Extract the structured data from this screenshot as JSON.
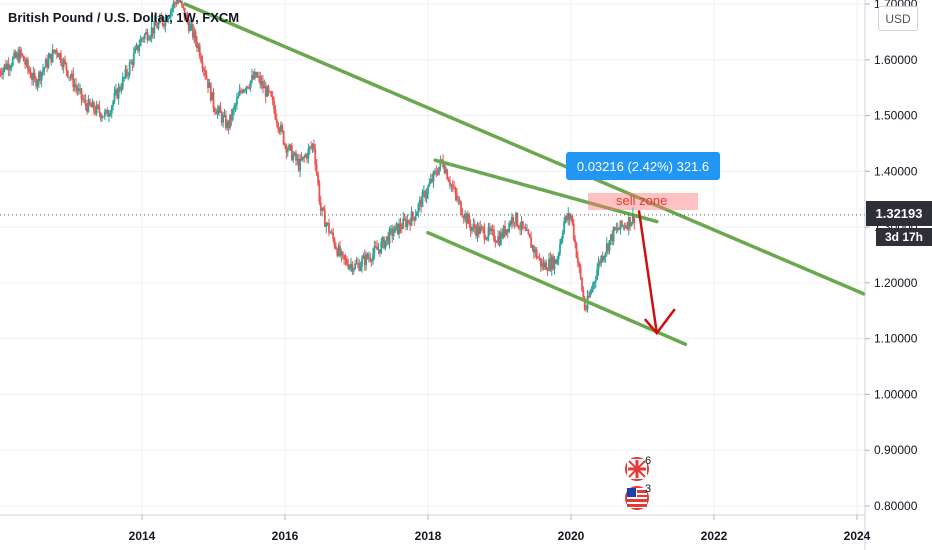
{
  "title": "British Pound / U.S. Dollar, 1W, FXCM",
  "currency": "USD",
  "current_price": "1.32193",
  "countdown": "3d 17h",
  "measure_label": "0.03216 (2.42%) 321.6",
  "sell_zone_label": "sell zone",
  "events": [
    {
      "name": "uk-flag-icon",
      "count": "6"
    },
    {
      "name": "us-flag-icon",
      "count": "3"
    }
  ],
  "colors": {
    "up": "#26a69a",
    "down": "#ef5350",
    "trendline": "#6aa84f",
    "arrow": "#cc1111",
    "measure": "#2196f3",
    "axis_text": "#131722"
  },
  "chart_data": {
    "type": "candlestick",
    "title": "British Pound / U.S. Dollar, 1W, FXCM",
    "xlabel": "",
    "ylabel": "",
    "x_ticks": [
      "2014",
      "2016",
      "2018",
      "2020",
      "2022",
      "2024"
    ],
    "y_ticks": [
      "1.70000",
      "1.60000",
      "1.50000",
      "1.40000",
      "1.30000",
      "1.20000",
      "1.10000",
      "1.00000",
      "0.90000",
      "0.80000"
    ],
    "ylim": [
      0.79,
      1.7
    ],
    "xlim": [
      2012.0,
      2024.1
    ],
    "grid": true,
    "series": [
      {
        "values": [
          [
            2012.0,
            1.58
          ],
          [
            2012.3,
            1.61
          ],
          [
            2012.5,
            1.56
          ],
          [
            2012.8,
            1.62
          ],
          [
            2013.2,
            1.52
          ],
          [
            2013.5,
            1.5
          ],
          [
            2013.8,
            1.58
          ],
          [
            2014.0,
            1.64
          ],
          [
            2014.3,
            1.67
          ],
          [
            2014.5,
            1.71
          ],
          [
            2014.8,
            1.62
          ],
          [
            2015.0,
            1.52
          ],
          [
            2015.2,
            1.48
          ],
          [
            2015.4,
            1.55
          ],
          [
            2015.6,
            1.57
          ],
          [
            2015.8,
            1.53
          ],
          [
            2016.0,
            1.45
          ],
          [
            2016.2,
            1.41
          ],
          [
            2016.4,
            1.45
          ],
          [
            2016.5,
            1.33
          ],
          [
            2016.8,
            1.24
          ],
          [
            2017.0,
            1.23
          ],
          [
            2017.3,
            1.26
          ],
          [
            2017.5,
            1.29
          ],
          [
            2017.8,
            1.32
          ],
          [
            2018.0,
            1.37
          ],
          [
            2018.2,
            1.42
          ],
          [
            2018.4,
            1.35
          ],
          [
            2018.6,
            1.3
          ],
          [
            2018.8,
            1.29
          ],
          [
            2019.0,
            1.28
          ],
          [
            2019.2,
            1.32
          ],
          [
            2019.4,
            1.28
          ],
          [
            2019.6,
            1.23
          ],
          [
            2019.8,
            1.24
          ],
          [
            2019.9,
            1.31
          ],
          [
            2020.0,
            1.32
          ],
          [
            2020.2,
            1.15
          ],
          [
            2020.4,
            1.24
          ],
          [
            2020.6,
            1.29
          ],
          [
            2020.8,
            1.31
          ],
          [
            2020.9,
            1.32
          ]
        ]
      }
    ],
    "annotations": [
      {
        "type": "trendline",
        "from": [
          2014.6,
          1.7
        ],
        "to": [
          2024.1,
          1.18
        ]
      },
      {
        "type": "trendline",
        "from": [
          2018.1,
          1.42
        ],
        "to": [
          2021.2,
          1.31
        ]
      },
      {
        "type": "trendline",
        "from": [
          2018.0,
          1.29
        ],
        "to": [
          2021.6,
          1.09
        ]
      },
      {
        "type": "arrow",
        "from": [
          2020.95,
          1.33
        ],
        "to": [
          2021.2,
          1.11
        ]
      },
      {
        "type": "hline",
        "at": 1.32193
      }
    ]
  }
}
